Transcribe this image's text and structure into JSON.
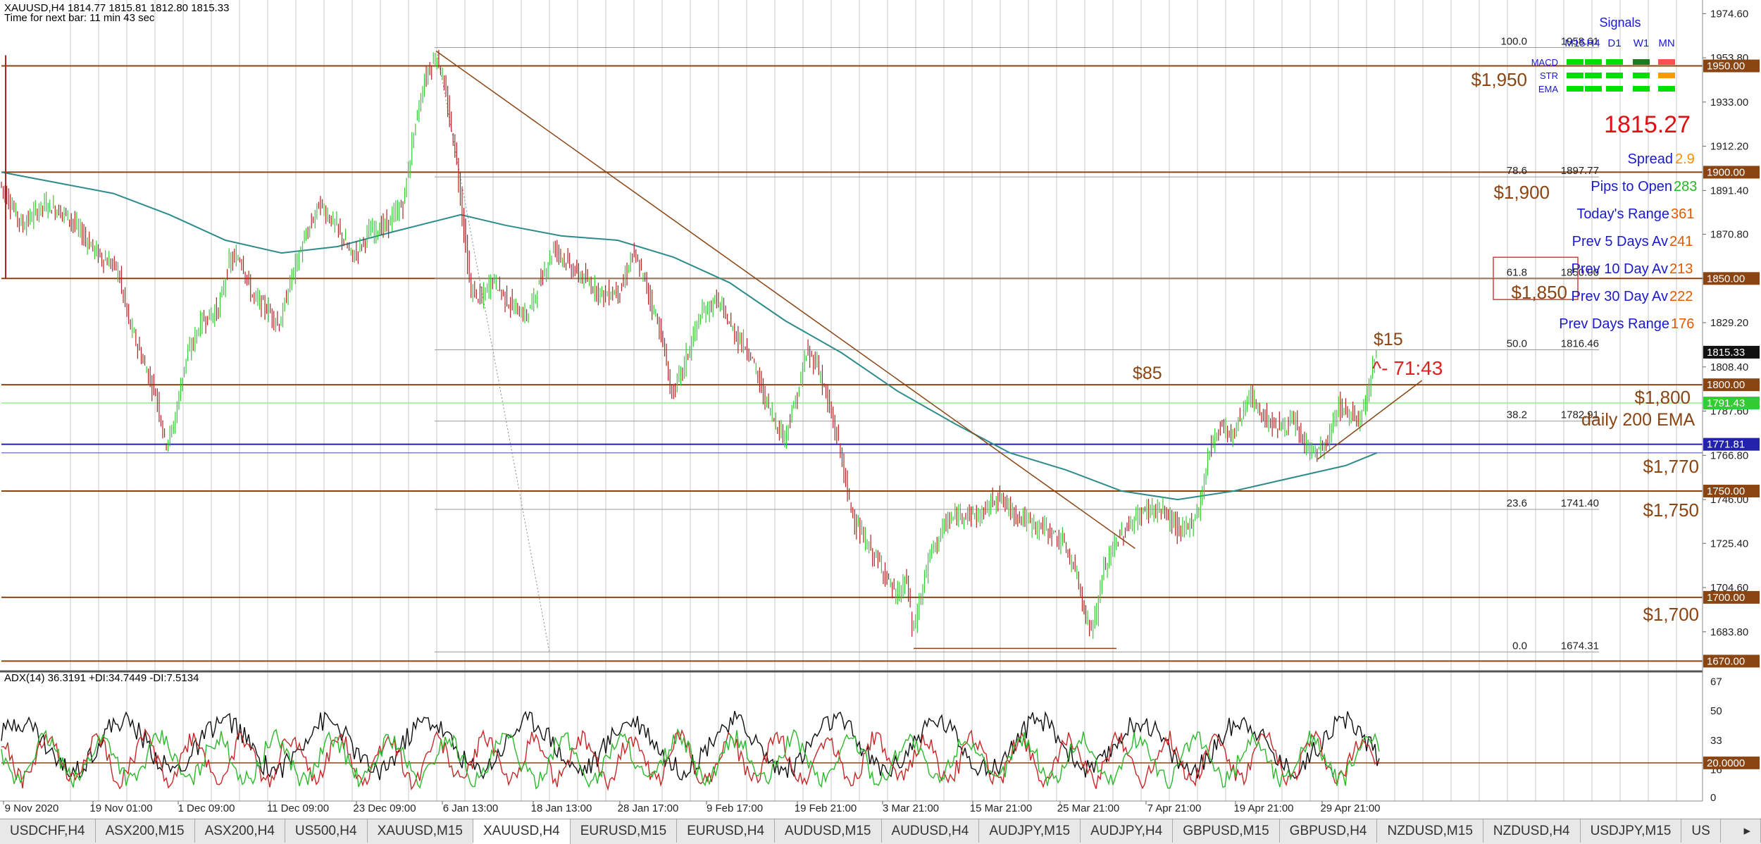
{
  "header": {
    "symbol_line": "XAUUSD,H4  1814.77 1815.81 1812.80 1815.33",
    "timer": "Time for next bar: 11 min 43 sec"
  },
  "chart_data": {
    "type": "candlestick",
    "symbol": "XAUUSD",
    "timeframe": "H4",
    "ohlc_last": {
      "open": 1814.77,
      "high": 1815.81,
      "low": 1812.8,
      "close": 1815.33
    },
    "y_ticks": [
      "1974.60",
      "1953.80",
      "1933.00",
      "1912.20",
      "1891.40",
      "1870.80",
      "1850.00",
      "1829.20",
      "1808.40",
      "1787.60",
      "1766.80",
      "1746.00",
      "1725.40",
      "1704.60",
      "1683.80"
    ],
    "ylim": [
      1665.5,
      1981.0
    ],
    "x_labels": [
      "9 Nov 2020",
      "19 Nov 01:00",
      "1 Dec 09:00",
      "11 Dec 09:00",
      "23 Dec 09:00",
      "6 Jan 13:00",
      "18 Jan 13:00",
      "28 Jan 17:00",
      "9 Feb 17:00",
      "19 Feb 21:00",
      "3 Mar 21:00",
      "15 Mar 21:00",
      "25 Mar 21:00",
      "7 Apr 21:00",
      "19 Apr 21:00",
      "29 Apr 21:00"
    ],
    "price_path": [
      [
        0,
        1895
      ],
      [
        20,
        1875
      ],
      [
        40,
        1885
      ],
      [
        60,
        1880
      ],
      [
        75,
        1870
      ],
      [
        90,
        1860
      ],
      [
        105,
        1855
      ],
      [
        115,
        1830
      ],
      [
        130,
        1808
      ],
      [
        140,
        1795
      ],
      [
        148,
        1772
      ],
      [
        155,
        1780
      ],
      [
        165,
        1810
      ],
      [
        180,
        1830
      ],
      [
        195,
        1835
      ],
      [
        205,
        1858
      ],
      [
        215,
        1860
      ],
      [
        225,
        1842
      ],
      [
        240,
        1835
      ],
      [
        250,
        1828
      ],
      [
        260,
        1850
      ],
      [
        270,
        1865
      ],
      [
        285,
        1885
      ],
      [
        300,
        1875
      ],
      [
        315,
        1860
      ],
      [
        330,
        1872
      ],
      [
        345,
        1875
      ],
      [
        360,
        1885
      ],
      [
        370,
        1920
      ],
      [
        380,
        1945
      ],
      [
        390,
        1955
      ],
      [
        395,
        1945
      ],
      [
        400,
        1930
      ],
      [
        408,
        1905
      ],
      [
        415,
        1870
      ],
      [
        420,
        1845
      ],
      [
        430,
        1840
      ],
      [
        440,
        1850
      ],
      [
        455,
        1838
      ],
      [
        470,
        1832
      ],
      [
        480,
        1845
      ],
      [
        495,
        1865
      ],
      [
        510,
        1855
      ],
      [
        525,
        1848
      ],
      [
        540,
        1842
      ],
      [
        555,
        1845
      ],
      [
        565,
        1862
      ],
      [
        575,
        1850
      ],
      [
        590,
        1825
      ],
      [
        600,
        1795
      ],
      [
        610,
        1808
      ],
      [
        625,
        1832
      ],
      [
        640,
        1840
      ],
      [
        655,
        1825
      ],
      [
        670,
        1815
      ],
      [
        680,
        1798
      ],
      [
        690,
        1785
      ],
      [
        700,
        1775
      ],
      [
        712,
        1795
      ],
      [
        720,
        1815
      ],
      [
        730,
        1810
      ],
      [
        740,
        1790
      ],
      [
        750,
        1770
      ],
      [
        758,
        1745
      ],
      [
        768,
        1730
      ],
      [
        780,
        1720
      ],
      [
        790,
        1712
      ],
      [
        800,
        1700
      ],
      [
        810,
        1708
      ],
      [
        815,
        1683
      ],
      [
        820,
        1695
      ],
      [
        830,
        1720
      ],
      [
        845,
        1735
      ],
      [
        860,
        1740
      ],
      [
        875,
        1738
      ],
      [
        890,
        1748
      ],
      [
        905,
        1740
      ],
      [
        920,
        1735
      ],
      [
        935,
        1732
      ],
      [
        950,
        1725
      ],
      [
        962,
        1710
      ],
      [
        972,
        1685
      ],
      [
        978,
        1690
      ],
      [
        985,
        1712
      ],
      [
        995,
        1725
      ],
      [
        1010,
        1735
      ],
      [
        1025,
        1742
      ],
      [
        1040,
        1740
      ],
      [
        1055,
        1730
      ],
      [
        1070,
        1740
      ],
      [
        1080,
        1770
      ],
      [
        1090,
        1782
      ],
      [
        1100,
        1775
      ],
      [
        1115,
        1795
      ],
      [
        1128,
        1785
      ],
      [
        1140,
        1780
      ],
      [
        1155,
        1782
      ],
      [
        1165,
        1772
      ],
      [
        1175,
        1768
      ],
      [
        1185,
        1772
      ],
      [
        1195,
        1790
      ],
      [
        1205,
        1786
      ],
      [
        1215,
        1785
      ],
      [
        1222,
        1800
      ],
      [
        1228,
        1815
      ]
    ],
    "ema_path": [
      [
        0,
        1900
      ],
      [
        50,
        1895
      ],
      [
        100,
        1890
      ],
      [
        150,
        1880
      ],
      [
        200,
        1868
      ],
      [
        250,
        1862
      ],
      [
        300,
        1865
      ],
      [
        350,
        1872
      ],
      [
        380,
        1876
      ],
      [
        410,
        1880
      ],
      [
        450,
        1875
      ],
      [
        500,
        1870
      ],
      [
        550,
        1868
      ],
      [
        600,
        1860
      ],
      [
        650,
        1848
      ],
      [
        700,
        1830
      ],
      [
        750,
        1815
      ],
      [
        800,
        1797
      ],
      [
        850,
        1782
      ],
      [
        900,
        1768
      ],
      [
        950,
        1760
      ],
      [
        1000,
        1750
      ],
      [
        1050,
        1746
      ],
      [
        1100,
        1750
      ],
      [
        1150,
        1756
      ],
      [
        1200,
        1762
      ],
      [
        1228,
        1768
      ]
    ],
    "ema_label": "daily 200 EMA",
    "ema_value_tag": "1791.43",
    "trendline": [
      [
        388,
        1957
      ],
      [
        1012,
        1723
      ]
    ],
    "support_line": [
      [
        1175,
        1765
      ],
      [
        1268,
        1802
      ]
    ],
    "horizontal_levels": [
      {
        "price": 1950,
        "label": "$1,950",
        "tag": "1950.00"
      },
      {
        "price": 1900,
        "label": "$1,900",
        "tag": "1900.00"
      },
      {
        "price": 1850,
        "label": "$1,850",
        "tag": "1850.00"
      },
      {
        "price": 1800,
        "label": "$1,800",
        "tag": "1800.00"
      },
      {
        "price": 1772,
        "label": "$1,770",
        "tag": "1771.81"
      },
      {
        "price": 1750,
        "label": "$1,750",
        "tag": "1750.00"
      },
      {
        "price": 1700,
        "label": "$1,700",
        "tag": "1700.00"
      },
      {
        "price": 1670,
        "label": "",
        "tag": "1670.00"
      }
    ],
    "fibonacci": [
      {
        "level": "100.0",
        "price": "1958.61",
        "y": 1958.61
      },
      {
        "level": "78.6",
        "price": "1897.77",
        "y": 1897.77
      },
      {
        "level": "61.8",
        "price": "1850.00",
        "y": 1850.0
      },
      {
        "level": "50.0",
        "price": "1816.46",
        "y": 1816.46
      },
      {
        "level": "38.2",
        "price": "1782.91",
        "y": 1782.91
      },
      {
        "level": "23.6",
        "price": "1741.40",
        "y": 1741.4
      },
      {
        "level": "0.0",
        "price": "1674.31",
        "y": 1674.31
      }
    ],
    "current_price_tag": "1815.33",
    "annotations": {
      "a85": "$85",
      "a15": "$15",
      "countdown": "^- 71:43"
    },
    "adx": {
      "title": "ADX(14) 36.3191 +DI:34.7449 -DI:7.5134",
      "y_ticks": [
        "67",
        "50",
        "33",
        "16",
        "0"
      ],
      "ylim": [
        0,
        70
      ],
      "level_tag": "20.0000",
      "level": 20
    }
  },
  "signals": {
    "title": "Signals",
    "columns": [
      "M15",
      "H4",
      "D1",
      "W1",
      "MN"
    ],
    "column_overlap": "M15",
    "rows": [
      {
        "name": "MACD",
        "colors": [
          "#00e000",
          "#00e000",
          "#00e000",
          "#1f7a1f",
          "#ff5050"
        ]
      },
      {
        "name": "STR",
        "colors": [
          "#00e000",
          "#00e000",
          "#00e000",
          "#00e000",
          "#ff9900"
        ]
      },
      {
        "name": "EMA",
        "colors": [
          "#00e000",
          "#00e000",
          "#00e000",
          "#00e000",
          "#00e000"
        ]
      }
    ]
  },
  "stats": {
    "price": "1815.27",
    "spread_label": "Spread",
    "spread": "2.9",
    "pips_label": "Pips to Open",
    "pips": "283",
    "today_label": "Today's Range",
    "today": "361",
    "prev5_label": "Prev 5 Days Av",
    "prev5": "241",
    "prev10_label": "Prev 10 Day Av",
    "prev10": "213",
    "prev30_label": "Prev 30 Day Av",
    "prev30": "222",
    "prevdays_label": "Prev Days Range",
    "prevdays": "176"
  },
  "tabs": [
    "USDCHF,H4",
    "ASX200,M15",
    "ASX200,H4",
    "US500,H4",
    "XAUUSD,M15",
    "XAUUSD,H4",
    "EURUSD,M15",
    "EURUSD,H4",
    "AUDUSD,M15",
    "AUDUSD,H4",
    "AUDJPY,M15",
    "AUDJPY,H4",
    "GBPUSD,M15",
    "GBPUSD,H4",
    "NZDUSD,M15",
    "NZDUSD,H4",
    "USDJPY,M15",
    "US"
  ],
  "active_tab": "XAUUSD,H4",
  "tab_scroll_icon": "▸",
  "colors": {
    "bull": "#32cd32",
    "bear": "#b22222",
    "level": "#8b4513",
    "ema": "#2e8b8b",
    "accent": "#1a1acc"
  }
}
